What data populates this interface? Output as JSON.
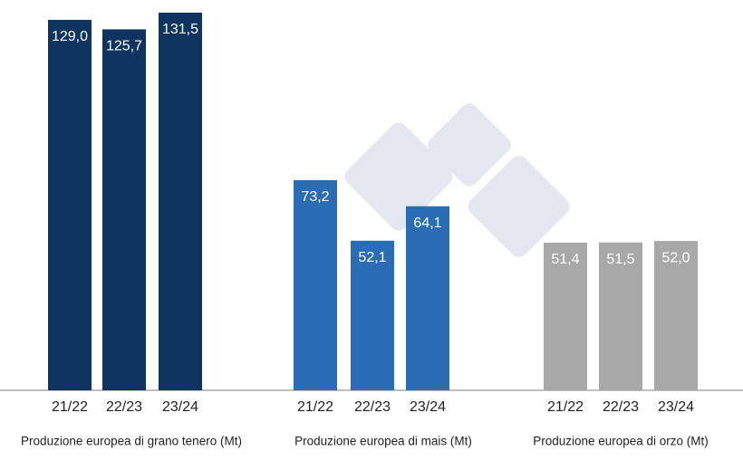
{
  "chart_data": [
    {
      "type": "bar",
      "title": "Produzione europea di grano tenero (Mt)",
      "categories": [
        "21/22",
        "22/23",
        "23/24"
      ],
      "values": [
        129.0,
        125.7,
        131.5
      ],
      "value_labels": [
        "129,0",
        "125,7",
        "131,5"
      ],
      "color": "#0f3460"
    },
    {
      "type": "bar",
      "title": "Produzione europea di mais (Mt)",
      "categories": [
        "21/22",
        "22/23",
        "23/24"
      ],
      "values": [
        73.2,
        52.1,
        64.1
      ],
      "value_labels": [
        "73,2",
        "52,1",
        "64,1"
      ],
      "color": "#2a6db5"
    },
    {
      "type": "bar",
      "title": "Produzione europea di orzo (Mt)",
      "categories": [
        "21/22",
        "22/23",
        "23/24"
      ],
      "values": [
        51.4,
        51.5,
        52.0
      ],
      "value_labels": [
        "51,4",
        "51,5",
        "52,0"
      ],
      "color": "#a8a8a8"
    }
  ]
}
